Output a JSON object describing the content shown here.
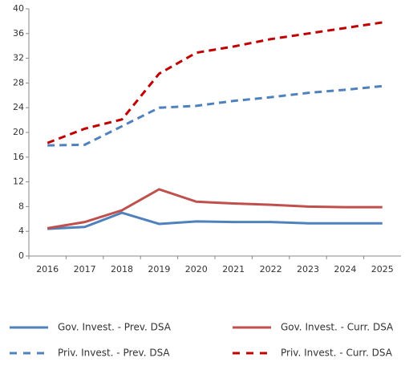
{
  "chart_data": {
    "type": "line",
    "categories": [
      "2016",
      "2017",
      "2018",
      "2019",
      "2020",
      "2021",
      "2022",
      "2023",
      "2024",
      "2025"
    ],
    "series": [
      {
        "name": "Gov. Invest. - Prev. DSA",
        "color": "#4f81bd",
        "dashed": false,
        "values": [
          4.4,
          4.7,
          7.0,
          5.2,
          5.6,
          5.5,
          5.5,
          5.3,
          5.3,
          5.3
        ]
      },
      {
        "name": "Gov. Invest. - Curr. DSA",
        "color": "#c0504d",
        "dashed": false,
        "values": [
          4.5,
          5.5,
          7.4,
          10.8,
          8.8,
          8.5,
          8.3,
          8.0,
          7.9,
          7.9
        ]
      },
      {
        "name": "Priv. Invest. - Prev. DSA",
        "color": "#4f81bd",
        "dashed": true,
        "values": [
          17.9,
          18.0,
          21.0,
          24.0,
          24.3,
          25.1,
          25.7,
          26.4,
          26.9,
          27.5
        ]
      },
      {
        "name": "Priv. Invest. - Curr. DSA",
        "color": "#c00000",
        "dashed": true,
        "values": [
          18.3,
          20.6,
          22.1,
          29.5,
          32.9,
          33.9,
          35.1,
          36.0,
          36.9,
          37.8
        ]
      }
    ],
    "ylim": [
      0,
      40
    ],
    "yticks": [
      0,
      4,
      8,
      12,
      16,
      20,
      24,
      28,
      32,
      36,
      40
    ],
    "grid": false
  }
}
